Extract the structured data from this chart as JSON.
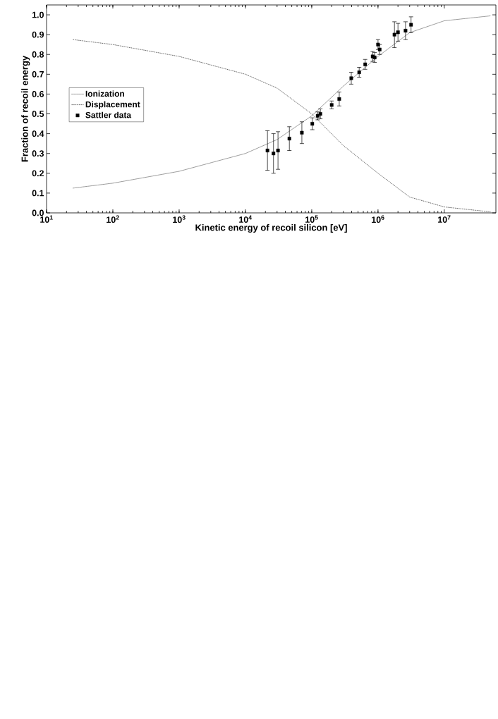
{
  "chart_data": {
    "type": "line",
    "xlabel": "Kinetic energy of recoil silicon   [eV]",
    "ylabel": "Fraction of recoil energy",
    "log": "x",
    "xlim": [
      10,
      60000000
    ],
    "ylim": [
      0,
      1.05
    ],
    "xticks": [
      {
        "value": 10,
        "label": "10$^{1}$"
      },
      {
        "value": 100,
        "label": "10$^{2}$"
      },
      {
        "value": 1000,
        "label": "10$^{3}$"
      },
      {
        "value": 10000,
        "label": "10$^{4}$"
      },
      {
        "value": 100000,
        "label": "10$^{5}$"
      },
      {
        "value": 1000000,
        "label": "10$^{6}$"
      },
      {
        "value": 10000000,
        "label": "10$^{7}$"
      }
    ],
    "yticks": [
      {
        "value": 0,
        "label": "0.0"
      },
      {
        "value": 0.1,
        "label": "0.1"
      },
      {
        "value": 0.2,
        "label": "0.2"
      },
      {
        "value": 0.3,
        "label": "0.3"
      },
      {
        "value": 0.4,
        "label": "0.4"
      },
      {
        "value": 0.5,
        "label": "0.5"
      },
      {
        "value": 0.6,
        "label": "0.6"
      },
      {
        "value": 0.7,
        "label": "0.7"
      },
      {
        "value": 0.8,
        "label": "0.8"
      },
      {
        "value": 0.9,
        "label": "0.9"
      },
      {
        "value": 1.0,
        "label": "1.0"
      }
    ],
    "legend": "left",
    "grid": false,
    "series": [
      {
        "name": "Ionization",
        "type": "line",
        "line_style": "dashdot",
        "marker": "none",
        "color": "#555555",
        "x": [
          25,
          100,
          1000,
          10000,
          30000,
          100000,
          300000,
          1000000,
          3000000,
          10000000,
          50000000
        ],
        "values": [
          0.125,
          0.15,
          0.21,
          0.3,
          0.37,
          0.49,
          0.64,
          0.79,
          0.91,
          0.97,
          0.995
        ]
      },
      {
        "name": "Displacement",
        "type": "line",
        "line_style": "dashed",
        "marker": "none",
        "color": "#555555",
        "x": [
          25,
          100,
          1000,
          10000,
          30000,
          100000,
          300000,
          1000000,
          3000000,
          10000000,
          50000000
        ],
        "values": [
          0.875,
          0.85,
          0.79,
          0.7,
          0.63,
          0.5,
          0.34,
          0.2,
          0.08,
          0.03,
          0.005
        ]
      },
      {
        "name": "Sattler data",
        "type": "scatter",
        "marker": "square",
        "color": "#000000",
        "x": [
          21500,
          26500,
          31000,
          46000,
          71000,
          102000,
          123000,
          135000,
          200000,
          260000,
          395000,
          520000,
          640000,
          830000,
          890000,
          1000000,
          1060000,
          1770000,
          2000000,
          2600000,
          3150000
        ],
        "values": [
          0.315,
          0.3,
          0.315,
          0.375,
          0.405,
          0.45,
          0.49,
          0.5,
          0.545,
          0.575,
          0.68,
          0.71,
          0.75,
          0.79,
          0.785,
          0.85,
          0.825,
          0.9,
          0.912,
          0.92,
          0.95
        ],
        "errors": [
          0.1,
          0.1,
          0.095,
          0.06,
          0.055,
          0.03,
          0.02,
          0.025,
          0.02,
          0.035,
          0.03,
          0.025,
          0.025,
          0.025,
          0.025,
          0.025,
          0.025,
          0.065,
          0.045,
          0.045,
          0.04
        ]
      }
    ]
  }
}
